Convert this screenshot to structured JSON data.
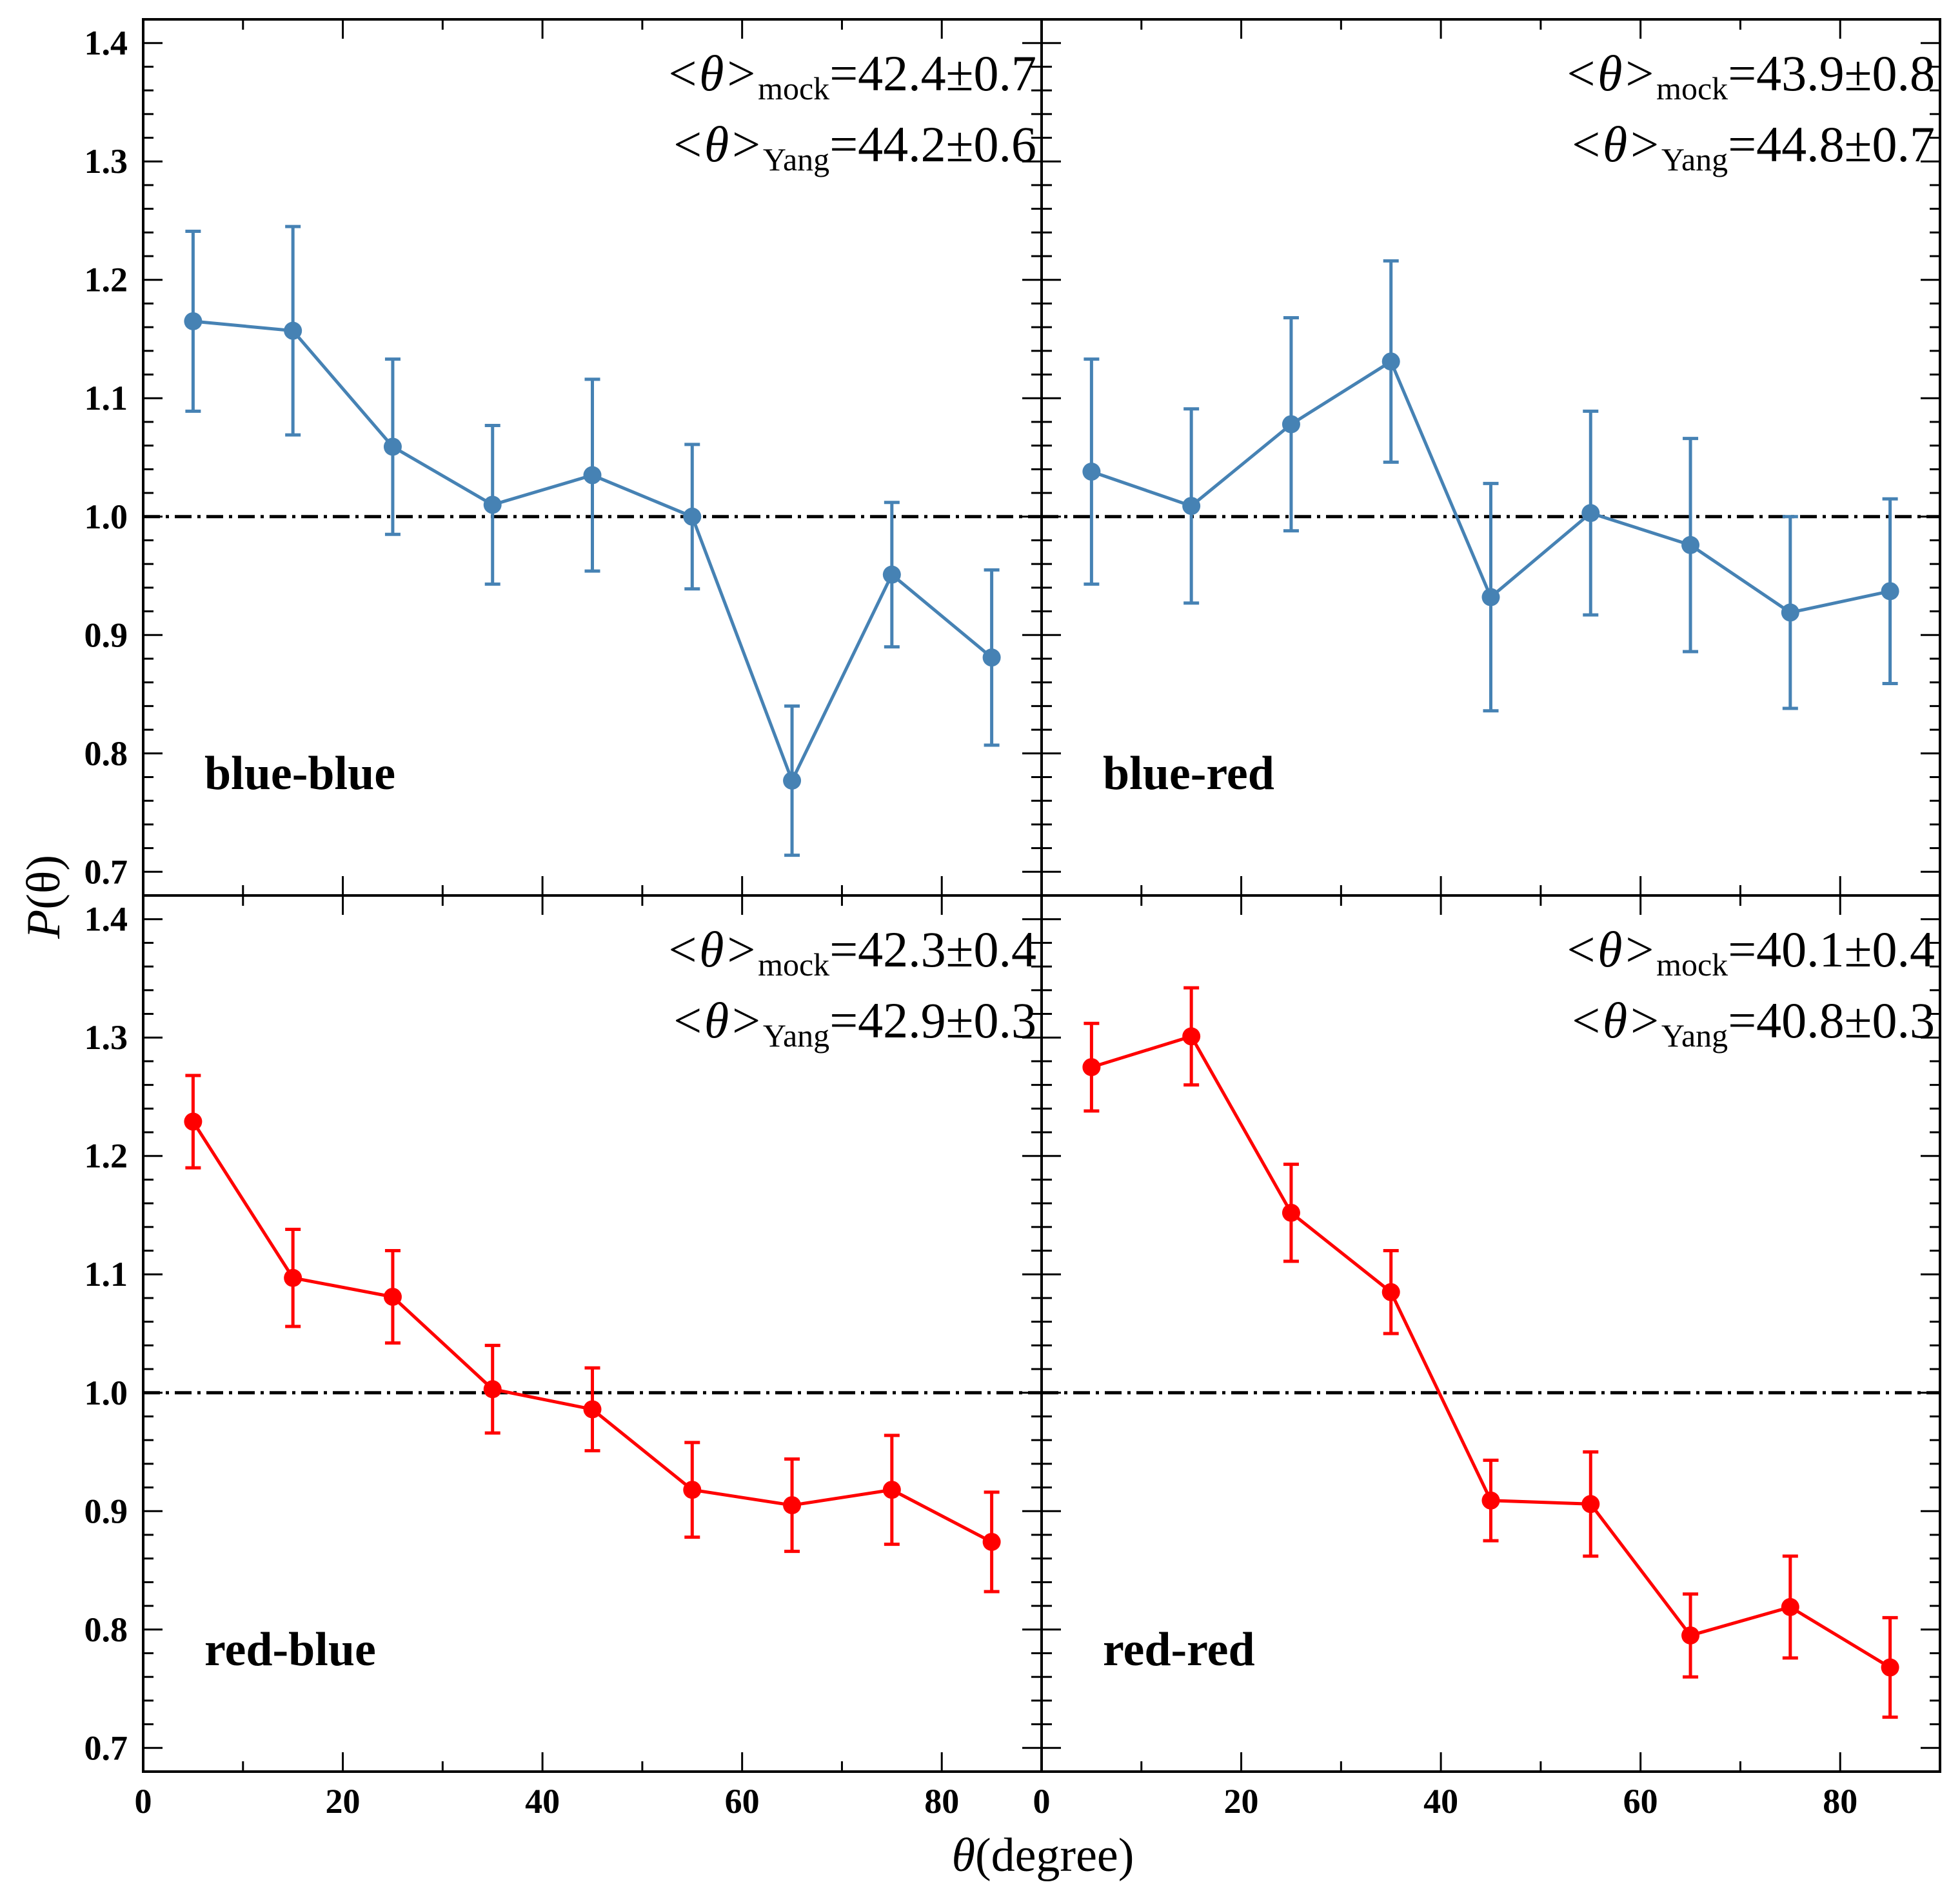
{
  "chart_data": {
    "type": "line",
    "layout": "2x2 grid, shared axes",
    "xlabel_symbol": "θ",
    "xlabel_unit": "(degree)",
    "ylabel_text": "P",
    "ylabel_arg": "(θ)",
    "xlim": [
      0,
      90
    ],
    "ylim": [
      0.68,
      1.42
    ],
    "xticks": [
      0,
      20,
      40,
      60,
      80
    ],
    "yticks": [
      0.7,
      0.8,
      0.9,
      1.0,
      1.1,
      1.2,
      1.3,
      1.4
    ],
    "ytick_labels": [
      "0.7",
      "0.8",
      "0.9",
      "1.0",
      "1.1",
      "1.2",
      "1.3",
      "1.4"
    ],
    "reference_line": 1.0,
    "x": [
      5,
      15,
      25,
      35,
      45,
      55,
      65,
      75,
      85
    ],
    "panels": [
      {
        "label": "blue-blue",
        "color": "#4682b4",
        "values": [
          1.165,
          1.157,
          1.059,
          1.01,
          1.035,
          1.0,
          0.777,
          0.951,
          0.881
        ],
        "errors": [
          0.076,
          0.088,
          0.074,
          0.067,
          0.081,
          0.061,
          0.063,
          0.061,
          0.074
        ],
        "annotations": [
          {
            "prefix": "<θ>",
            "sub": "mock",
            "value": "=42.4±0.7"
          },
          {
            "prefix": "<θ>",
            "sub": "Yang",
            "value": "=44.2±0.6"
          }
        ]
      },
      {
        "label": "blue-red",
        "color": "#4682b4",
        "values": [
          1.038,
          1.009,
          1.078,
          1.131,
          0.932,
          1.003,
          0.976,
          0.919,
          0.937
        ],
        "errors": [
          0.095,
          0.082,
          0.09,
          0.085,
          0.096,
          0.086,
          0.09,
          0.081,
          0.078
        ],
        "annotations": [
          {
            "prefix": "<θ>",
            "sub": "mock",
            "value": "=43.9±0.8"
          },
          {
            "prefix": "<θ>",
            "sub": "Yang",
            "value": "=44.8±0.7"
          }
        ]
      },
      {
        "label": "red-blue",
        "color": "#ff0000",
        "values": [
          1.229,
          1.097,
          1.081,
          1.003,
          0.986,
          0.918,
          0.905,
          0.918,
          0.874
        ],
        "errors": [
          0.039,
          0.041,
          0.039,
          0.037,
          0.035,
          0.04,
          0.039,
          0.046,
          0.042
        ],
        "annotations": [
          {
            "prefix": "<θ>",
            "sub": "mock",
            "value": "=42.3±0.4"
          },
          {
            "prefix": "<θ>",
            "sub": "Yang",
            "value": "=42.9±0.3"
          }
        ]
      },
      {
        "label": "red-red",
        "color": "#ff0000",
        "values": [
          1.275,
          1.301,
          1.152,
          1.085,
          0.909,
          0.906,
          0.795,
          0.819,
          0.768
        ],
        "errors": [
          0.037,
          0.041,
          0.041,
          0.035,
          0.034,
          0.044,
          0.035,
          0.043,
          0.042
        ],
        "annotations": [
          {
            "prefix": "<θ>",
            "sub": "mock",
            "value": "=40.1±0.4"
          },
          {
            "prefix": "<θ>",
            "sub": "Yang",
            "value": "=40.8±0.3"
          }
        ]
      }
    ]
  }
}
